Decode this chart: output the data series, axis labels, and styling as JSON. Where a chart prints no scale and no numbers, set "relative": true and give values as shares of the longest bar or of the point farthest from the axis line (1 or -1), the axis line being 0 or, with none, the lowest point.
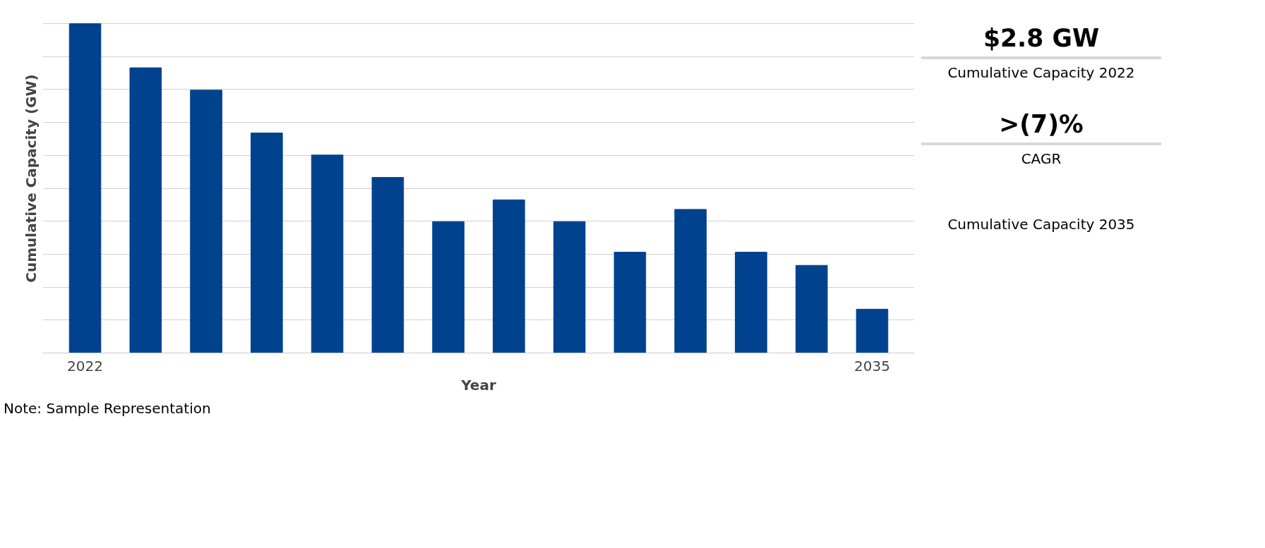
{
  "chart_data": [
    {
      "type": "bar",
      "xlabel": "Year",
      "ylabel": "Cumulative Capacity (GW)",
      "relative": true,
      "grid": "y",
      "color": "#01428f",
      "categories": [
        "2022",
        null,
        null,
        null,
        null,
        null,
        null,
        null,
        null,
        null,
        null,
        null,
        null,
        "2035"
      ],
      "values": [
        1,
        0.866,
        0.798,
        0.668,
        0.601,
        0.533,
        0.399,
        0.465,
        0.399,
        0.306,
        0.436,
        0.306,
        0.266,
        0.133
      ],
      "annotations": [
        "Note: Sample Representation"
      ]
    },
    {
      "type": "other",
      "annotations": [
        "$2.8 GW",
        "Cumulative Capacity 2022",
        ">(7)%",
        "CAGR",
        "Cumulative Capacity 2035"
      ]
    }
  ]
}
